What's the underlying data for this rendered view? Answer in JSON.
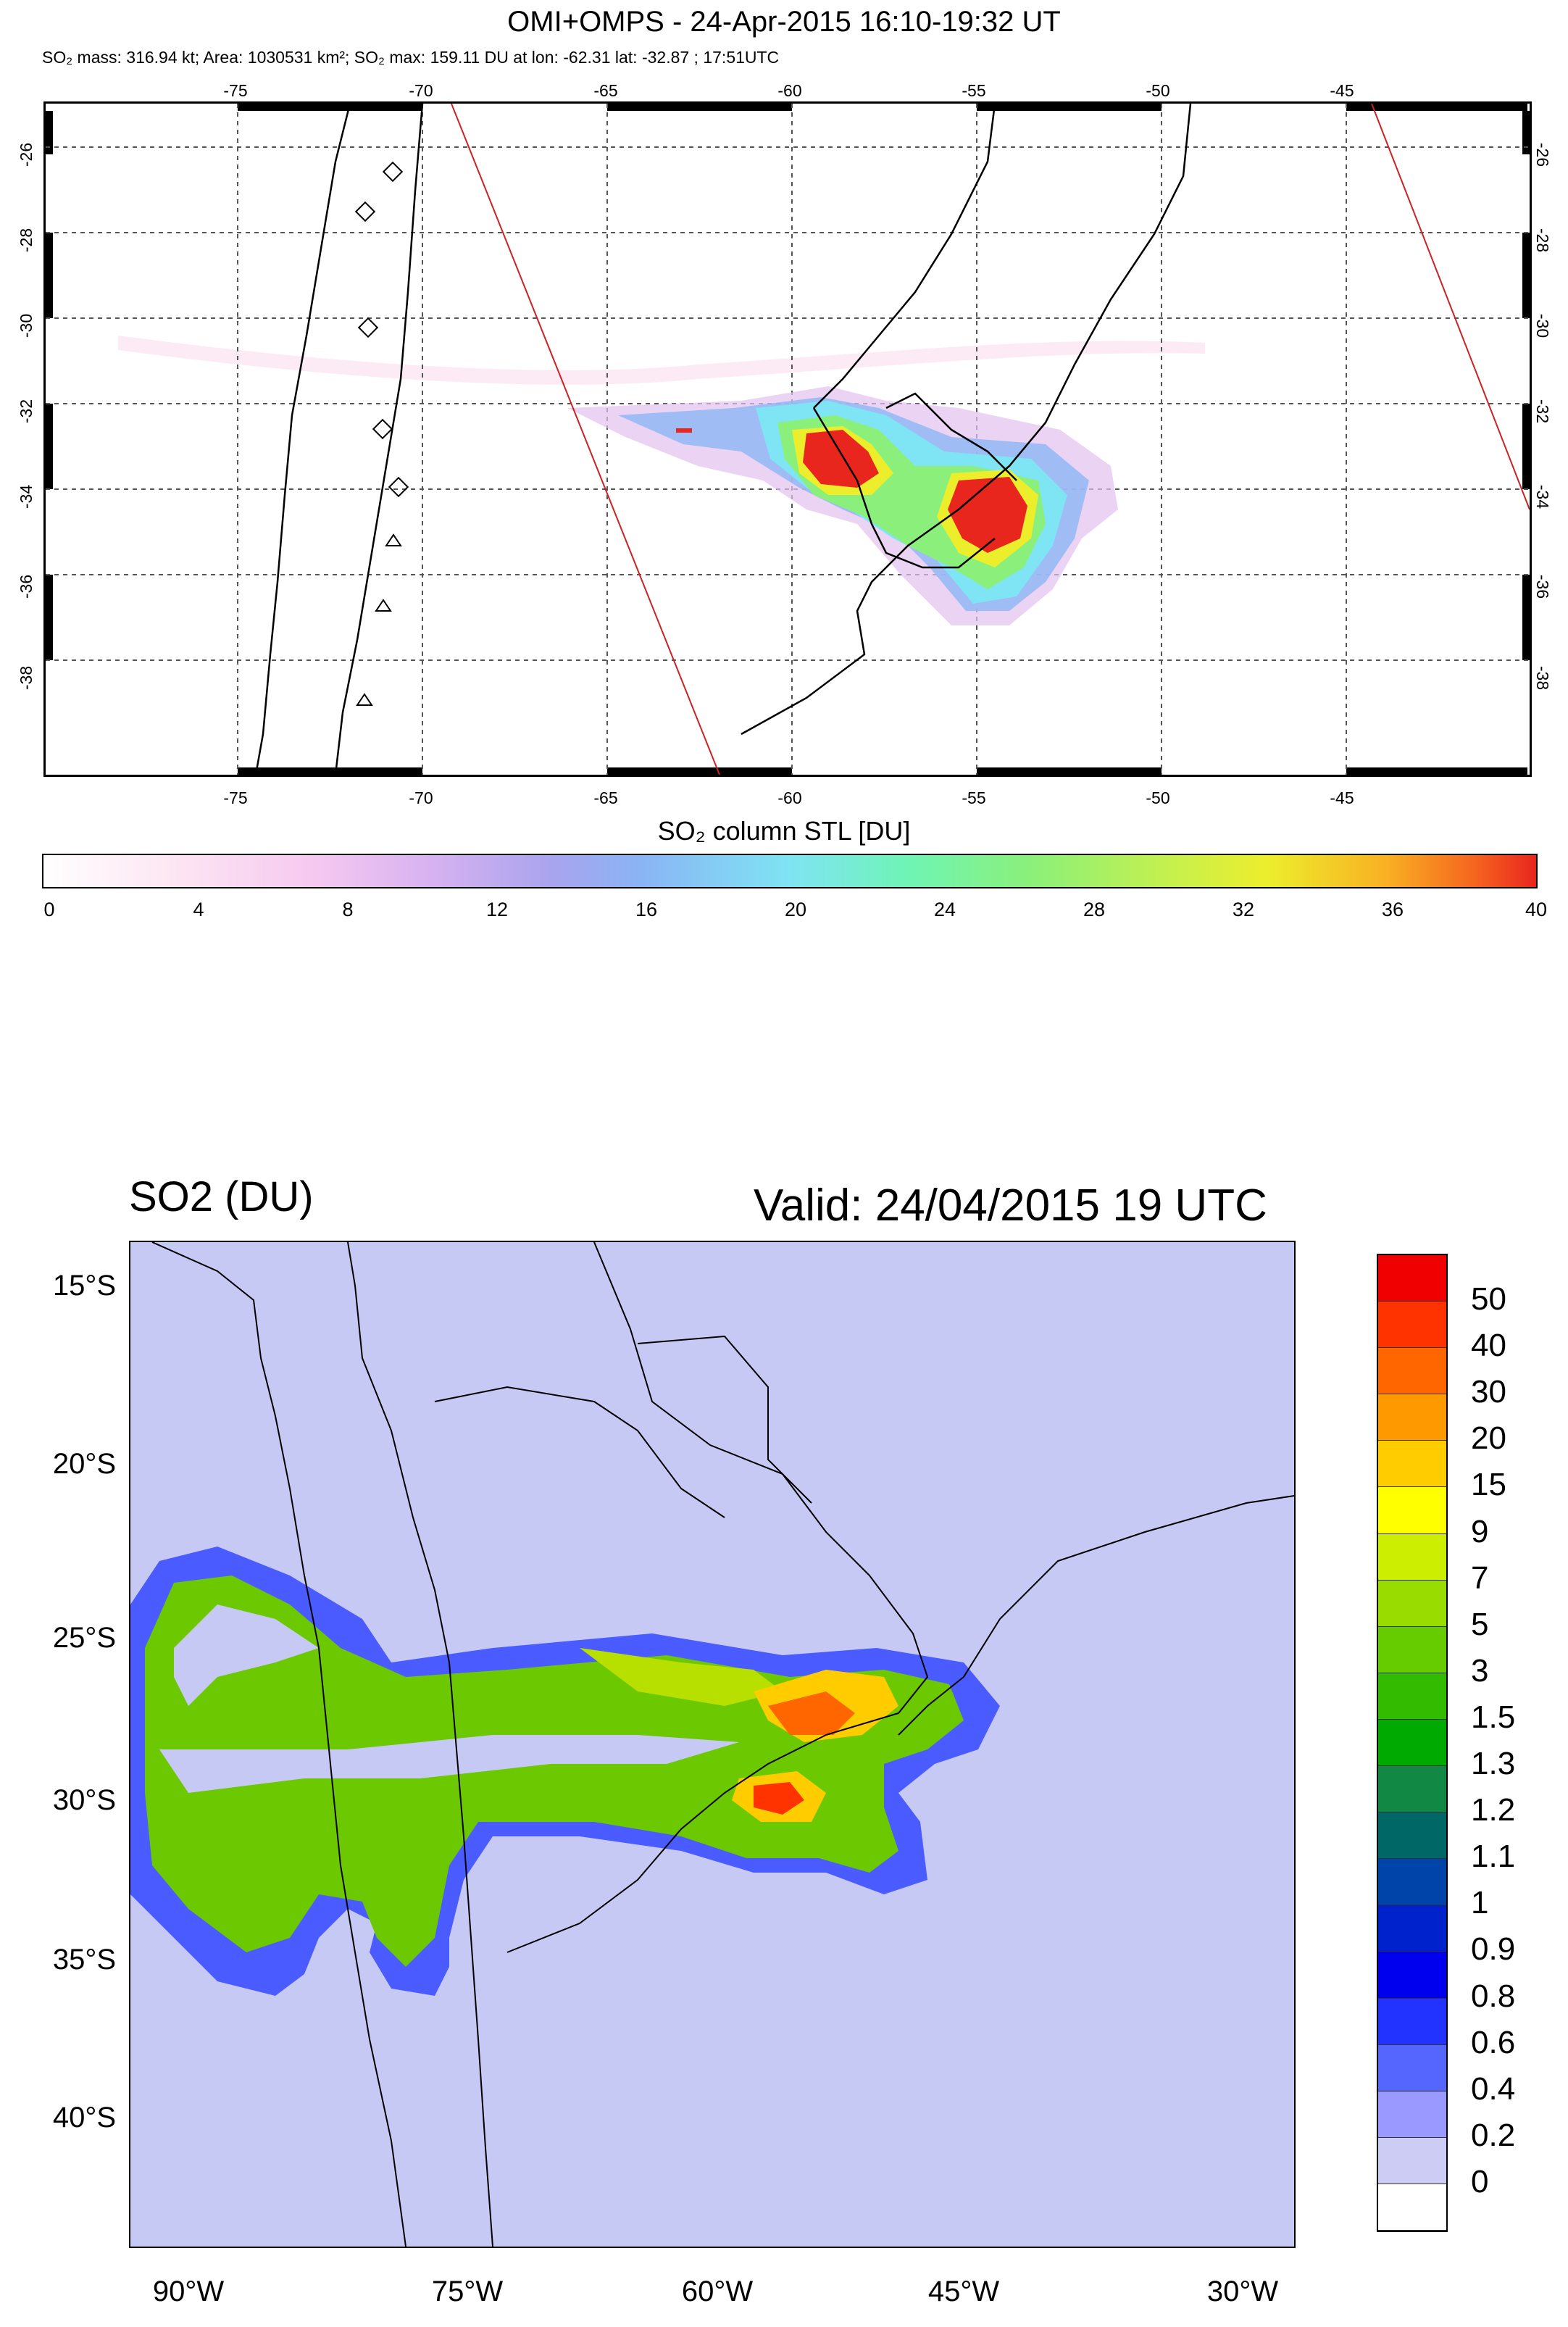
{
  "panel1": {
    "title": "OMI+OMPS - 24-Apr-2015 16:10-19:32 UT",
    "subtitle": "SO₂ mass: 316.94 kt; Area: 1030531 km²; SO₂ max: 159.11 DU at lon: -62.31 lat: -32.87 ; 17:51UTC",
    "lon_ticks": [
      "-75",
      "-70",
      "-65",
      "-60",
      "-55",
      "-50",
      "-45"
    ],
    "lat_ticks": [
      "-26",
      "-28",
      "-30",
      "-32",
      "-34",
      "-36",
      "-38"
    ],
    "colorbar_title": "SO₂ column STL [DU]",
    "colorbar_labels": [
      "0",
      "4",
      "8",
      "12",
      "16",
      "20",
      "24",
      "28",
      "32",
      "36",
      "40"
    ],
    "colors": {
      "max": "#e8261d",
      "mid": "#7fe4f3",
      "low": "#fde8f3"
    }
  },
  "panel2": {
    "title": "SO2 (DU)",
    "valid": "Valid: 24/04/2015  19 UTC",
    "lat_labels": [
      "15°S",
      "20°S",
      "25°S",
      "30°S",
      "35°S",
      "40°S"
    ],
    "lon_labels": [
      "90°W",
      "75°W",
      "60°W",
      "45°W",
      "30°W"
    ],
    "legend": [
      {
        "label": "50",
        "color": "#f00000"
      },
      {
        "label": "40",
        "color": "#ff3300"
      },
      {
        "label": "30",
        "color": "#ff6600"
      },
      {
        "label": "20",
        "color": "#ff9900"
      },
      {
        "label": "15",
        "color": "#ffcc00"
      },
      {
        "label": "9",
        "color": "#ffff00"
      },
      {
        "label": "7",
        "color": "#ccee00"
      },
      {
        "label": "5",
        "color": "#99dd00"
      },
      {
        "label": "3",
        "color": "#66cc00"
      },
      {
        "label": "1.5",
        "color": "#33bb00"
      },
      {
        "label": "1.3",
        "color": "#00aa00"
      },
      {
        "label": "1.2",
        "color": "#118844"
      },
      {
        "label": "1.1",
        "color": "#006666"
      },
      {
        "label": "1",
        "color": "#0044aa"
      },
      {
        "label": "0.9",
        "color": "#0022cc"
      },
      {
        "label": "0.8",
        "color": "#0000ee"
      },
      {
        "label": "0.6",
        "color": "#2233ff"
      },
      {
        "label": "0.4",
        "color": "#5566ff"
      },
      {
        "label": "0.2",
        "color": "#9999ff"
      },
      {
        "label": "0",
        "color": "#ccccf5"
      },
      {
        "label": "",
        "color": "#ffffff"
      }
    ]
  }
}
